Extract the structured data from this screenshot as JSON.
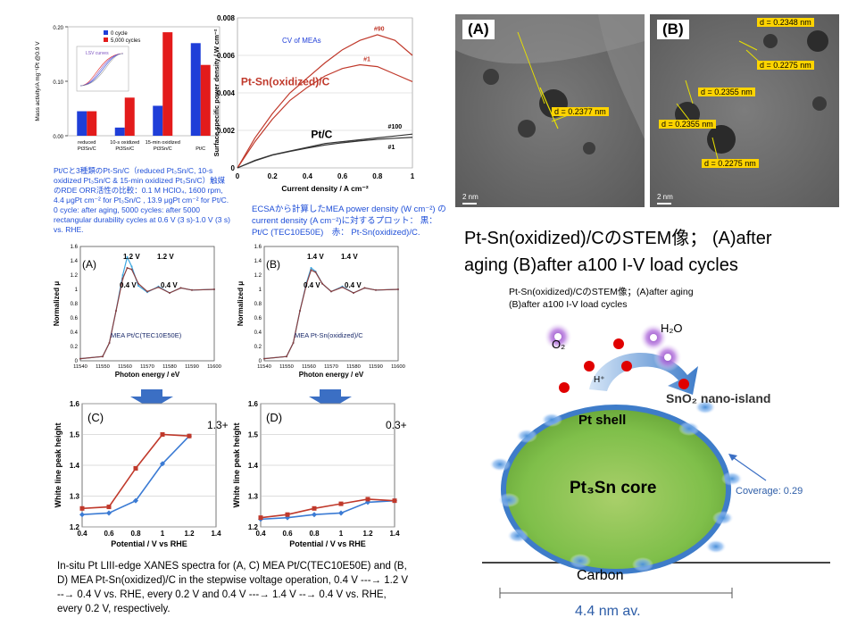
{
  "colors": {
    "blue": "#3b7bd4",
    "red": "#c0392b",
    "bar_blue": "#1f3ed8",
    "bar_red": "#e31b1b",
    "caption_blue": "#1f4fd8",
    "core": "#7fbf4a",
    "shell": "#4a8fd8"
  },
  "barchart_text": {
    "ylabel": "Mass activity/A mg⁻¹Pt @0.9 V",
    "inset": "LSV curves",
    "caption": "Pt/Cと3種類のPt-Sn/C（reduced Pt₃Sn/C, 10-s oxidized Pt₃Sn/C & 15-min oxidized Pt₃Sn/C）触媒のRDE ORR活性の比較：0.1 M HClO₄, 1600 rpm, 4.4 μgPt cm⁻² for Pt₃Sn/C , 13.9 μgPt cm⁻² for Pt/C.",
    "caption2": "0 cycle: after aging, 5000 cycles: after 5000 rectangular durability cycles at 0.6 V (3 s)-1.0 V (3 s) vs. RHE."
  },
  "power_text": {
    "caption": "ECSAから計算したMEA power density (W cm⁻²) の current density (A cm⁻²)に対するプロット： 黒： Pt/C (TEC10E50E)　赤： Pt-Sn(oxidized)/C."
  },
  "tem": {
    "labels": [
      "(A)",
      "(B)"
    ],
    "A_dim": "d = 0.2377 nm",
    "B_dims": [
      "d = 0.2348 nm",
      "d = 0.2275 nm",
      "d = 0.2355 nm",
      "d = 0.2355 nm",
      "d = 0.2275 nm"
    ],
    "scale": "2 nm",
    "title": "Pt-Sn(oxidized)/CのSTEM像； (A)after aging  (B)after a100 I-V load cycles",
    "subtitle": "Pt-Sn(oxidized)/CのSTEM像；(A)after aging  (B)after a100 I-V load cycles"
  },
  "xanes_text": {
    "ylabel": "Normalized μ",
    "xlabel": "Photon energy / eV",
    "A": {
      "label": "(A)",
      "legend": "MEA Pt/C(TEC10E50E)",
      "ann": [
        "1.2 V",
        "1.2 V",
        "0.4 V",
        "0.4 V"
      ]
    },
    "B": {
      "label": "(B)",
      "legend": "MEA Pt-Sn(oxidized)/C",
      "ann": [
        "1.4 V",
        "1.4 V",
        "0.4 V",
        "0.4 V"
      ]
    }
  },
  "wl_text": {
    "ylabel": "White line peak height",
    "xlabel": "Potential / V vs RHE",
    "C": {
      "label": "(C)",
      "ann": "1.3+"
    },
    "D": {
      "label": "(D)",
      "ann": "0.3+"
    }
  },
  "caption_bottom": "In-situ Pt LIII-edge XANES spectra for (A, C) MEA Pt/C(TEC10E50E) and (B, D) MEA Pt-Sn(oxidized)/C in the stepwise voltage operation, 0.4 V ---→ 1.2 V --→ 0.4 V vs. RHE, every 0.2 V and 0.4 V ---→ 1.4 V --→ 0.4 V vs. RHE, every 0.2 V, respectively.",
  "diagram": {
    "o2": "O₂",
    "h2o": "H₂O",
    "hplus": "H⁺",
    "sno2": "SnO₂ nano-island",
    "shell": "Pt shell",
    "core": "Pt₃Sn core",
    "coverage": "Coverage: 0.29",
    "carbon": "Carbon",
    "size": "4.4 nm av."
  },
  "chart_data": [
    {
      "type": "bar",
      "categories": [
        "reduced Pt3Sn/C",
        "10-s oxidized Pt3Sn/C",
        "15-min oxidized Pt3Sn/C",
        "Pt/C"
      ],
      "series": [
        {
          "name": "0 cycle",
          "values": [
            0.045,
            0.015,
            0.055,
            0.17
          ]
        },
        {
          "name": "5,000 cycles",
          "values": [
            0.045,
            0.07,
            0.19,
            0.13
          ]
        }
      ],
      "ylim": [
        0,
        0.2
      ],
      "yticks": [
        "0.00",
        "0.10",
        "0.20"
      ],
      "legend": "top"
    },
    {
      "type": "line",
      "title": "CV of MEAs",
      "xlabel": "Current density / A cm⁻²",
      "ylabel": "Surface specific power density / W cm⁻²",
      "xlim": [
        0,
        1
      ],
      "ylim": [
        0,
        0.008
      ],
      "xticks": [
        "0",
        "0.2",
        "0.4",
        "0.6",
        "0.8",
        "1"
      ],
      "yticks": [
        "0",
        "0.002",
        "0.004",
        "0.006",
        "0.008"
      ],
      "series": [
        {
          "name": "Pt-Sn(oxidized)/C",
          "label": "#90",
          "x": [
            0,
            0.1,
            0.2,
            0.3,
            0.4,
            0.5,
            0.6,
            0.7,
            0.8,
            0.9,
            1.0
          ],
          "y": [
            0,
            0.0016,
            0.0029,
            0.004,
            0.0048,
            0.0056,
            0.0063,
            0.0068,
            0.0071,
            0.0068,
            0.006
          ]
        },
        {
          "label": "#1",
          "x": [
            0,
            0.1,
            0.2,
            0.3,
            0.4,
            0.5,
            0.6,
            0.7,
            0.8,
            0.9,
            1.0
          ],
          "y": [
            0,
            0.0014,
            0.0026,
            0.0036,
            0.0043,
            0.0049,
            0.0053,
            0.0055,
            0.0054,
            0.005,
            0.0046
          ]
        },
        {
          "name": "Pt/C",
          "label": "#100",
          "x": [
            0,
            0.1,
            0.2,
            0.3,
            0.4,
            0.5,
            0.6,
            0.7,
            0.8,
            0.9,
            1.0
          ],
          "y": [
            0,
            0.0004,
            0.0007,
            0.0009,
            0.0011,
            0.0013,
            0.0014,
            0.0015,
            0.0016,
            0.0017,
            0.0018
          ]
        },
        {
          "label": "#1",
          "x": [
            0,
            0.1,
            0.2,
            0.3,
            0.4,
            0.5,
            0.6,
            0.7,
            0.8,
            0.9,
            1.0
          ],
          "y": [
            0,
            0.00038,
            0.00068,
            0.00088,
            0.00106,
            0.00122,
            0.00134,
            0.00144,
            0.00152,
            0.00158,
            0.00163
          ]
        }
      ]
    },
    {
      "type": "line",
      "xlabel": "Photon energy / eV",
      "ylabel": "Normalized μ",
      "xlim": [
        11540,
        11600
      ],
      "ylim": [
        0,
        1.6
      ],
      "xticks": [
        "11540",
        "11550",
        "11560",
        "11570",
        "11580",
        "11590",
        "11600"
      ],
      "yticks": [
        "0",
        "0.2",
        "0.4",
        "0.6",
        "0.8",
        "1",
        "1.2",
        "1.4",
        "1.6"
      ],
      "series": [
        {
          "label": "1.2 V",
          "x": [
            11540,
            11550,
            11553,
            11556,
            11559,
            11561,
            11563,
            11566,
            11570,
            11575,
            11580,
            11585,
            11590,
            11600
          ],
          "y": [
            0.03,
            0.06,
            0.25,
            0.7,
            1.2,
            1.45,
            1.32,
            1.05,
            0.96,
            1.04,
            0.95,
            1.02,
            0.99,
            1.0
          ]
        },
        {
          "label": "0.4 V",
          "x": [
            11540,
            11550,
            11553,
            11556,
            11559,
            11561,
            11563,
            11566,
            11570,
            11575,
            11580,
            11585,
            11590,
            11600
          ],
          "y": [
            0.03,
            0.06,
            0.25,
            0.7,
            1.15,
            1.3,
            1.28,
            1.08,
            0.97,
            1.03,
            0.95,
            1.02,
            0.99,
            1.0
          ]
        }
      ]
    },
    {
      "type": "line",
      "xlabel": "Photon energy / eV",
      "ylabel": "Normalized μ",
      "xlim": [
        11540,
        11600
      ],
      "ylim": [
        0,
        1.6
      ],
      "xticks": [
        "11540",
        "11550",
        "11560",
        "11570",
        "11580",
        "11590",
        "11600"
      ],
      "yticks": [
        "0",
        "0.2",
        "0.4",
        "0.6",
        "0.8",
        "1",
        "1.2",
        "1.4",
        "1.6"
      ],
      "series": [
        {
          "label": "1.4 V",
          "x": [
            11540,
            11550,
            11553,
            11556,
            11559,
            11561,
            11563,
            11566,
            11570,
            11575,
            11580,
            11585,
            11590,
            11600
          ],
          "y": [
            0.03,
            0.06,
            0.25,
            0.7,
            1.1,
            1.3,
            1.25,
            1.08,
            0.97,
            1.04,
            0.95,
            1.02,
            0.99,
            1.0
          ]
        },
        {
          "label": "0.4 V",
          "x": [
            11540,
            11550,
            11553,
            11556,
            11559,
            11561,
            11563,
            11566,
            11570,
            11575,
            11580,
            11585,
            11590,
            11600
          ],
          "y": [
            0.03,
            0.06,
            0.25,
            0.7,
            1.08,
            1.27,
            1.24,
            1.08,
            0.97,
            1.03,
            0.95,
            1.02,
            0.99,
            1.0
          ]
        }
      ]
    },
    {
      "type": "line",
      "xlabel": "Potential / V vs RHE",
      "ylabel": "White line peak height",
      "xlim": [
        0.4,
        1.4
      ],
      "ylim": [
        1.2,
        1.6
      ],
      "xticks": [
        "0.4",
        "0.6",
        "0.8",
        "1",
        "1.2",
        "1.4"
      ],
      "yticks": [
        "1.2",
        "1.3",
        "1.4",
        "1.5",
        "1.6"
      ],
      "series": [
        {
          "direction": "up",
          "x": [
            0.4,
            0.6,
            0.8,
            1.0,
            1.2
          ],
          "y": [
            1.24,
            1.245,
            1.285,
            1.405,
            1.495
          ]
        },
        {
          "direction": "down",
          "x": [
            1.2,
            1.0,
            0.8,
            0.6,
            0.4
          ],
          "y": [
            1.495,
            1.5,
            1.39,
            1.265,
            1.26
          ]
        }
      ]
    },
    {
      "type": "line",
      "xlabel": "Potential / V vs RHE",
      "ylabel": "White line peak height",
      "xlim": [
        0.4,
        1.4
      ],
      "ylim": [
        1.2,
        1.6
      ],
      "xticks": [
        "0.4",
        "0.6",
        "0.8",
        "1",
        "1.2",
        "1.4"
      ],
      "yticks": [
        "1.2",
        "1.3",
        "1.4",
        "1.5",
        "1.6"
      ],
      "series": [
        {
          "direction": "up",
          "x": [
            0.4,
            0.6,
            0.8,
            1.0,
            1.2,
            1.4
          ],
          "y": [
            1.225,
            1.23,
            1.24,
            1.245,
            1.28,
            1.285
          ]
        },
        {
          "direction": "down",
          "x": [
            1.4,
            1.2,
            1.0,
            0.8,
            0.6,
            0.4
          ],
          "y": [
            1.285,
            1.29,
            1.275,
            1.26,
            1.24,
            1.23
          ]
        }
      ]
    }
  ]
}
